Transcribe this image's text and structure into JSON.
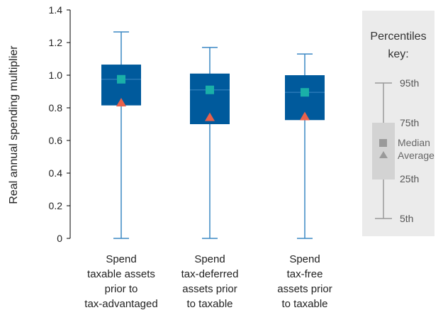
{
  "chart_data": {
    "type": "box",
    "ylabel": "Real annual spending multiplier",
    "xlabel": "",
    "title": "",
    "ylim": [
      0,
      1.4
    ],
    "yticks": [
      "0",
      "0.2",
      "0.4",
      "0.6",
      "0.8",
      "1.0",
      "1.2",
      "1.4"
    ],
    "grid": false,
    "categories": [
      [
        "Spend",
        "taxable assets",
        "prior to",
        "tax-advantaged"
      ],
      [
        "Spend",
        "tax-deferred",
        "assets prior",
        "to taxable"
      ],
      [
        "Spend",
        "tax-free",
        "assets prior",
        "to taxable"
      ]
    ],
    "boxes": [
      {
        "p5": 0.0,
        "p25": 0.815,
        "median": 0.975,
        "p75": 1.065,
        "p95": 1.265,
        "average": 0.835
      },
      {
        "p5": 0.0,
        "p25": 0.7,
        "median": 0.91,
        "p75": 1.01,
        "p95": 1.17,
        "average": 0.745
      },
      {
        "p5": 0.0,
        "p25": 0.725,
        "median": 0.895,
        "p75": 1.0,
        "p95": 1.13,
        "average": 0.75
      }
    ],
    "colors": {
      "box": "#005a9c",
      "whisker": "#3b88c4",
      "median_marker": "#1ab0a8",
      "average_marker": "#e8614c",
      "key_panel": "#ebebeb",
      "key_box": "#d3d3d3",
      "key_marker": "#9a9a9a"
    }
  },
  "legend": {
    "title_lines": [
      "Percentiles",
      "key:"
    ],
    "p95": "95th",
    "p75": "75th",
    "p25": "25th",
    "p5": "5th",
    "median": "Median",
    "average": "Average"
  }
}
